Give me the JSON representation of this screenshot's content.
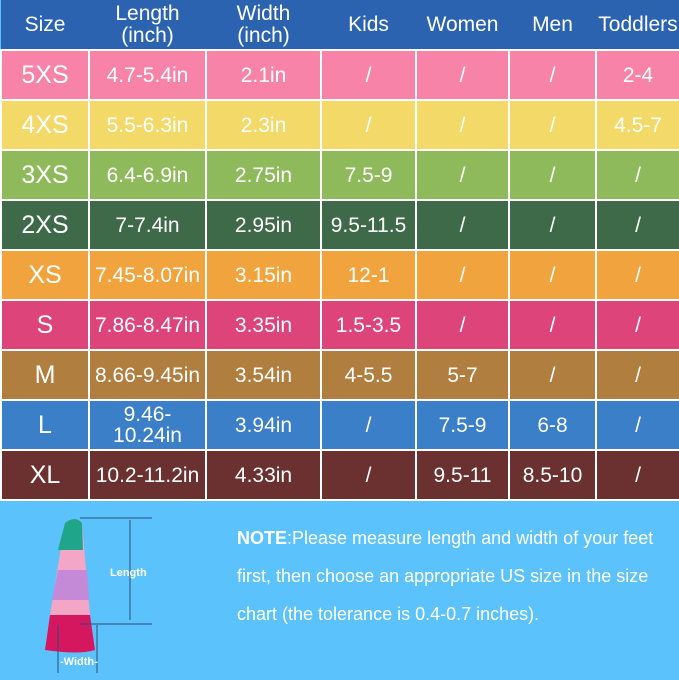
{
  "headers": [
    "Size",
    "Length\n(inch)",
    "Width\n(inch)",
    "Kids",
    "Women",
    "Men",
    "Toddlers"
  ],
  "header_color": "#2c63b1",
  "rows": [
    {
      "size": "5XS",
      "length": "4.7-5.4in",
      "width": "2.1in",
      "kids": "/",
      "women": "/",
      "men": "/",
      "toddlers": "2-4",
      "color": "#f784a8"
    },
    {
      "size": "4XS",
      "length": "5.5-6.3in",
      "width": "2.3in",
      "kids": "/",
      "women": "/",
      "men": "/",
      "toddlers": "4.5-7",
      "color": "#f3d967"
    },
    {
      "size": "3XS",
      "length": "6.4-6.9in",
      "width": "2.75in",
      "kids": "7.5-9",
      "women": "/",
      "men": "/",
      "toddlers": "/",
      "color": "#8fba5b"
    },
    {
      "size": "2XS",
      "length": "7-7.4in",
      "width": "2.95in",
      "kids": "9.5-11.5",
      "women": "/",
      "men": "/",
      "toddlers": "/",
      "color": "#3f6a49"
    },
    {
      "size": "XS",
      "length": "7.45-8.07in",
      "width": "3.15in",
      "kids": "12-1",
      "women": "/",
      "men": "/",
      "toddlers": "/",
      "color": "#f1a43d"
    },
    {
      "size": "S",
      "length": "7.86-8.47in",
      "width": "3.35in",
      "kids": "1.5-3.5",
      "women": "/",
      "men": "/",
      "toddlers": "/",
      "color": "#dd4479"
    },
    {
      "size": "M",
      "length": "8.66-9.45in",
      "width": "3.54in",
      "kids": "4-5.5",
      "women": "5-7",
      "men": "/",
      "toddlers": "/",
      "color": "#b07e3f"
    },
    {
      "size": "L",
      "length": "9.46-10.24in",
      "width": "3.94in",
      "kids": "/",
      "women": "7.5-9",
      "men": "6-8",
      "toddlers": "/",
      "color": "#3a7fc7"
    },
    {
      "size": "XL",
      "length": "10.2-11.2in",
      "width": "4.33in",
      "kids": "/",
      "women": "9.5-11",
      "men": "8.5-10",
      "toddlers": "/",
      "color": "#6b3131"
    }
  ],
  "diagram": {
    "length_label": "Length",
    "width_label": "-Width-"
  },
  "note": {
    "label": "NOTE",
    "text": ":Please measure length and width of your feet first, then choose an appropriate US size in the size chart (the tolerance is 0.4-0.7 inches)."
  }
}
